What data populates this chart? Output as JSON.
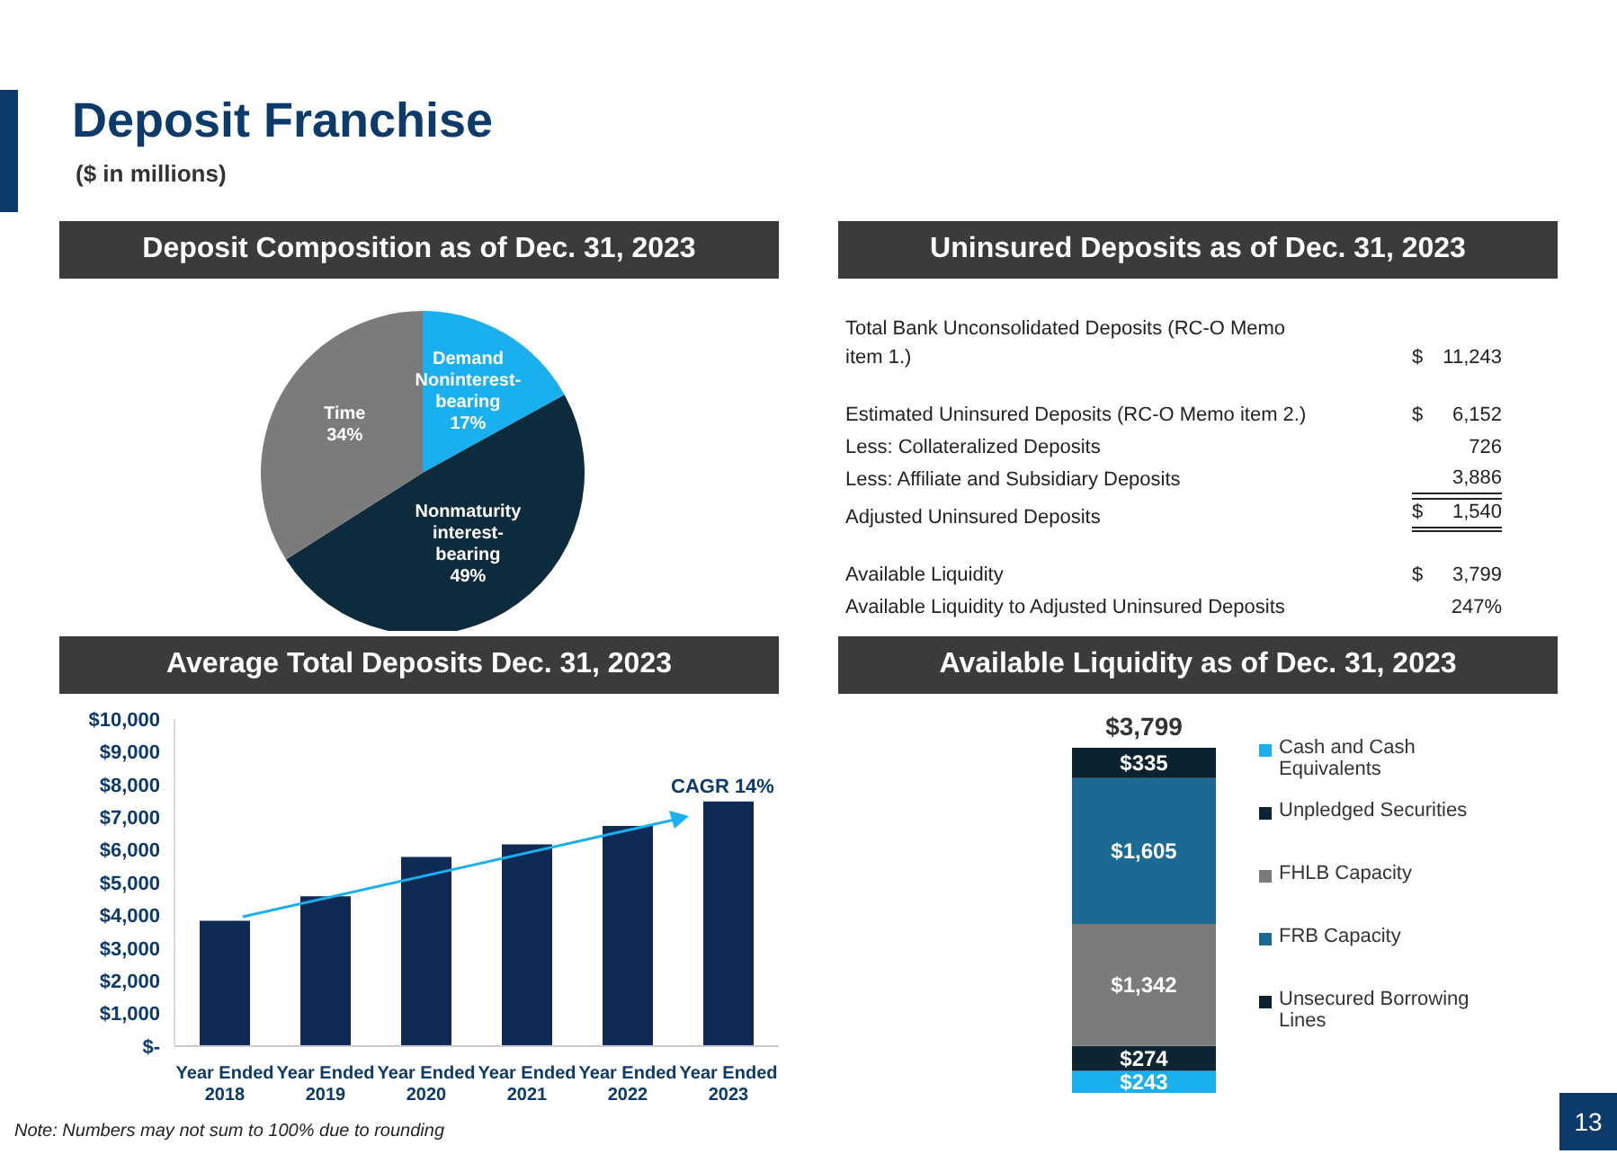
{
  "chart_data": [
    {
      "type": "other",
      "title": "Deposit Franchise",
      "subtitle": "($ in millions)",
      "annotations": [
        "Note: Numbers may not sum to 100% due to rounding",
        "13"
      ]
    },
    {
      "type": "pie",
      "title": "Deposit Composition as of Dec. 31, 2023",
      "categories": [
        "Demand Noninterest-bearing",
        "Nonmaturity interest-bearing",
        "Time"
      ],
      "values": [
        17,
        49,
        34
      ],
      "value_labels": [
        "17%",
        "49%",
        "34%"
      ],
      "colors": [
        "#1ab0ef",
        "#0e2a3d",
        "#7b7b7b"
      ],
      "legend": false
    },
    {
      "type": "other",
      "title": "Uninsured Deposits as of Dec. 31, 2023",
      "categories": [
        "Total Bank Unconsolidated Deposits (RC-O Memo item 1.)",
        "Estimated Uninsured Deposits (RC-O Memo item 2.)",
        "Less: Collateralized Deposits",
        "Less: Affiliate and Subsidiary Deposits",
        "Adjusted Uninsured Deposits",
        "Available Liquidity",
        "Available Liquidity to Adjusted Uninsured Deposits"
      ],
      "value_labels": [
        "$ 11,243",
        "$ 6,152",
        "726",
        "3,886",
        "$ 1,540",
        "$ 3,799",
        "247%"
      ]
    },
    {
      "type": "bar",
      "title": "Average Total Deposits Dec. 31, 2023",
      "categories": [
        "Year Ended 2018",
        "Year Ended 2019",
        "Year Ended 2020",
        "Year Ended 2021",
        "Year Ended 2022",
        "Year Ended 2023"
      ],
      "values": [
        3830,
        4580,
        5780,
        6170,
        6730,
        7480
      ],
      "color": "#0d2b55",
      "ylim": [
        0,
        10000
      ],
      "yticks": [
        {
          "value": 0,
          "label": "$-"
        },
        {
          "value": 1000,
          "label": "$1,000"
        },
        {
          "value": 2000,
          "label": "$2,000"
        },
        {
          "value": 3000,
          "label": "$3,000"
        },
        {
          "value": 4000,
          "label": "$4,000"
        },
        {
          "value": 5000,
          "label": "$5,000"
        },
        {
          "value": 6000,
          "label": "$6,000"
        },
        {
          "value": 7000,
          "label": "$7,000"
        },
        {
          "value": 8000,
          "label": "$8,000"
        },
        {
          "value": 9000,
          "label": "$9,000"
        },
        {
          "value": 10000,
          "label": "$10,000"
        }
      ],
      "annotations": [
        "CAGR 14%"
      ],
      "legend": false,
      "grid": false
    },
    {
      "type": "bar",
      "title": "Available Liquidity as of Dec. 31, 2023",
      "stacked": true,
      "categories": [
        null
      ],
      "legend": "right",
      "totals": [
        "$3,799"
      ],
      "series": [
        {
          "name": "Cash and Cash Equivalents",
          "color": "#1ab0ef",
          "values": [
            243
          ],
          "value_labels": [
            "$243"
          ]
        },
        {
          "name": "Unpledged Securities",
          "color": "#0d2533",
          "values": [
            274
          ],
          "value_labels": [
            "$274"
          ]
        },
        {
          "name": "FHLB Capacity",
          "color": "#7b7b7b",
          "values": [
            1342
          ],
          "value_labels": [
            "$1,342"
          ]
        },
        {
          "name": "FRB Capacity",
          "color": "#1b6a93",
          "values": [
            1605
          ],
          "value_labels": [
            "$1,605"
          ]
        },
        {
          "name": "Unsecured Borrowing Lines",
          "color": "#0b2230",
          "values": [
            335
          ],
          "value_labels": [
            "$335"
          ]
        }
      ]
    }
  ]
}
